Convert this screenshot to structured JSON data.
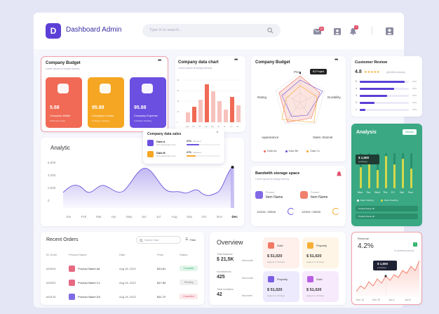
{
  "header": {
    "logo_letter": "D",
    "title": "Dashboard Admin",
    "search_placeholder": "Type in to search...",
    "mail_badge": "10",
    "bell_badge": "7"
  },
  "company_budget_cards": {
    "title": "Company Budget",
    "subtitle": "Lorem ipsum is simply dummy",
    "items": [
      {
        "value": "5.88",
        "label": "Company Wallet",
        "sub": "Text/Lorem Here",
        "color": "#f06a55"
      },
      {
        "value": "95.88",
        "label": "Company Income",
        "sub": "In Design Tracking",
        "color": "#f5a623"
      },
      {
        "value": "95.88",
        "label": "Company Expense",
        "sub": "In Design Tracking",
        "color": "#6b4fe0"
      }
    ]
  },
  "company_data_chart": {
    "title": "Company data chart",
    "subtitle": "Lorem ipsum is simply dummy",
    "months": [
      "Jan",
      "Fb",
      "Mr",
      "Ap",
      "My",
      "Jn",
      "Jl",
      "Au",
      "Sp"
    ]
  },
  "company_data_sales": {
    "title": "Company data sales",
    "rows": [
      {
        "name": "Data A",
        "sub": "Text description here",
        "pct": "37%",
        "note": "Targeted",
        "color": "#6b4fe0"
      },
      {
        "name": "Data B",
        "sub": "Text description here",
        "pct": "27%",
        "note": "Targeted",
        "color": "#f5a623"
      }
    ]
  },
  "radar": {
    "title": "Company Budget",
    "axes": [
      "Price",
      "Durability",
      "Sales channel",
      "Appearance",
      "Rating"
    ],
    "tooltip": "B3 Project",
    "legend": [
      "Data Aa",
      "Data Bb",
      "Data Cc"
    ],
    "legend_colors": [
      "#f06a55",
      "#6b4fe0",
      "#f5a623"
    ]
  },
  "customer_review": {
    "title": "Customer Review",
    "rating": "4.8",
    "stars": "★★★★★",
    "count": "(86,896 reviews)",
    "bars": [
      {
        "label": "5",
        "pct": 0.92,
        "note": "15%"
      },
      {
        "label": "4",
        "pct": 0.7,
        "note": "15%"
      },
      {
        "label": "3",
        "pct": 0.55,
        "note": "15%"
      },
      {
        "label": "2",
        "pct": 0.3,
        "note": "15%"
      },
      {
        "label": "1",
        "pct": 0.12,
        "note": "15%"
      }
    ]
  },
  "analytic": {
    "title": "Analytic",
    "y_ticks": [
      "6,000",
      "4,000",
      "2,000",
      "0"
    ],
    "months": [
      "Jan",
      "Feb",
      "Mar",
      "Apr",
      "May",
      "Jun",
      "Jul",
      "Aug",
      "Sep",
      "Oct",
      "Nov",
      "Dec"
    ]
  },
  "bandwidth": {
    "title": "Bandwith storage space",
    "subtitle": "Lorem ipsum is simply dummy",
    "items": [
      {
        "cat": "Product",
        "name": "Item Name",
        "usage": "120Gb / 250Gb"
      },
      {
        "cat": "Product",
        "name": "Item Name",
        "usage": "120Gb / 250Gb"
      }
    ]
  },
  "analysis": {
    "title": "Analysis",
    "button": "Refresh",
    "tooltip_value": "$ 1,500",
    "tooltip_label": "profitdays",
    "days": [
      "Mon",
      "Tue",
      "Wed",
      "Thu",
      "Fri",
      "Sat",
      "Sun"
    ],
    "legend": [
      "Data Tracking",
      "Data Checking"
    ],
    "rows": [
      "Product Name ID",
      "Product Name ID"
    ]
  },
  "recent_orders": {
    "title": "Recent Orders",
    "search_placeholder": "Search Data",
    "filter_label": "Filter",
    "columns": [
      "ID Order",
      "Product Name",
      "Date",
      "Price",
      "Status"
    ],
    "rows": [
      {
        "id": "#20019",
        "product": "Product Name Aa",
        "date": "Aug 26, 2022",
        "price": "$14.81",
        "status": "Complete",
        "status_color": "#2fb36b",
        "icon_color": "#e0506b"
      },
      {
        "id": "#20023",
        "product": "Product Name Cc",
        "date": "Aug 26, 2022",
        "price": "$17.84",
        "status": "Pending",
        "status_color": "#888888",
        "icon_color": "#e0506b"
      },
      {
        "id": "#20129",
        "product": "Product Name Dd",
        "date": "Aug 26, 2022",
        "price": "$11.70",
        "status": "Cancelled",
        "status_color": "#e0506b",
        "icon_color": "#6b4fe0"
      }
    ]
  },
  "overview": {
    "title": "Overview",
    "stats": [
      {
        "label": "Total Balance",
        "value": "$ 21,5K",
        "period": "this month"
      },
      {
        "label": "Investments",
        "value": "425",
        "period": "this month"
      },
      {
        "label": "Total Invitation",
        "value": "42",
        "period": "this week"
      }
    ],
    "tiles": [
      {
        "name": "Gold",
        "value": "$ 51,020",
        "sub": "Highest in 30 Days",
        "bg": "#fff0ec",
        "accent": "#f06a55"
      },
      {
        "name": "Property",
        "value": "$ 51,020",
        "sub": "Highest in 30 Days",
        "bg": "#fff5e6",
        "accent": "#f5a623"
      },
      {
        "name": "Property",
        "value": "$ 51,020",
        "sub": "Highest in 30 Days",
        "bg": "#eeeafd",
        "accent": "#6b4fe0"
      },
      {
        "name": "Gold",
        "value": "$ 51,020",
        "sub": "Highest in 30 Days",
        "bg": "#f7eafc",
        "accent": "#b04fe0"
      }
    ]
  },
  "revenue": {
    "title": "Revenue",
    "value": "4.2%",
    "sub": "In selected period",
    "tooltip_value": "$ 1,500",
    "tooltip_label": "profitdays",
    "dates": [
      "Dec 10",
      "Dec 20",
      "Jan 4",
      "Jan 8"
    ]
  }
}
